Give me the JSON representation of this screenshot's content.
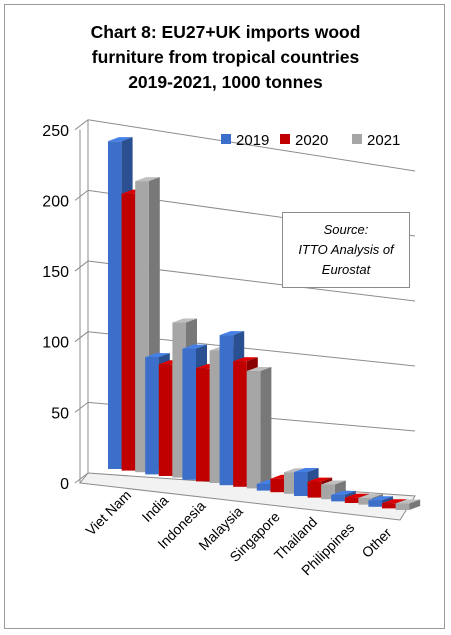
{
  "chart_data": {
    "type": "bar",
    "title": [
      "Chart 8: EU27+UK imports wood",
      "furniture from tropical countries",
      "2019-2021, 1000 tonnes"
    ],
    "categories": [
      "Viet Nam",
      "India",
      "Indonesia",
      "Malaysia",
      "Singapore",
      "Thailand",
      "Philippines",
      "Other"
    ],
    "series": [
      {
        "name": "2019",
        "color": "#3c6fc9",
        "values": [
          232,
          84,
          95,
          110,
          5,
          18,
          5,
          5
        ]
      },
      {
        "name": "2020",
        "color": "#c00000",
        "values": [
          196,
          80,
          82,
          92,
          10,
          12,
          4,
          4
        ]
      },
      {
        "name": "2021",
        "color": "#a6a6a6",
        "values": [
          206,
          111,
          96,
          86,
          16,
          11,
          5,
          5
        ]
      }
    ],
    "ylim": [
      0,
      250
    ],
    "yticks": [
      "0",
      "50",
      "100",
      "150",
      "200",
      "250"
    ],
    "legend_position": "top-right",
    "grid": true,
    "annotation": [
      "Source:",
      "ITTO Analysis of",
      "Eurostat"
    ]
  }
}
